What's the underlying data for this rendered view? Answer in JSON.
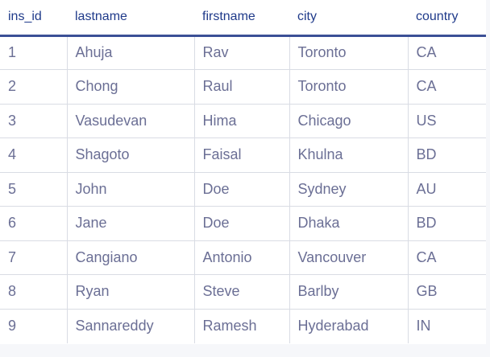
{
  "table": {
    "columns": [
      "ins_id",
      "lastname",
      "firstname",
      "city",
      "country"
    ],
    "rows": [
      [
        "1",
        "Ahuja",
        "Rav",
        "Toronto",
        "CA"
      ],
      [
        "2",
        "Chong",
        "Raul",
        "Toronto",
        "CA"
      ],
      [
        "3",
        "Vasudevan",
        "Hima",
        "Chicago",
        "US"
      ],
      [
        "4",
        "Shagoto",
        "Faisal",
        "Khulna",
        "BD"
      ],
      [
        "5",
        "John",
        "Doe",
        "Sydney",
        "AU"
      ],
      [
        "6",
        "Jane",
        "Doe",
        "Dhaka",
        "BD"
      ],
      [
        "7",
        "Cangiano",
        "Antonio",
        "Vancouver",
        "CA"
      ],
      [
        "8",
        "Ryan",
        "Steve",
        "Barlby",
        "GB"
      ],
      [
        "9",
        "Sannareddy",
        "Ramesh",
        "Hyderabad",
        "IN"
      ]
    ]
  },
  "colors": {
    "header_text": "#1f3a8a",
    "header_rule": "#3b4f96",
    "cell_text": "#6b6f95",
    "grid_line": "#d9dce4",
    "background": "#f6f7fa"
  }
}
